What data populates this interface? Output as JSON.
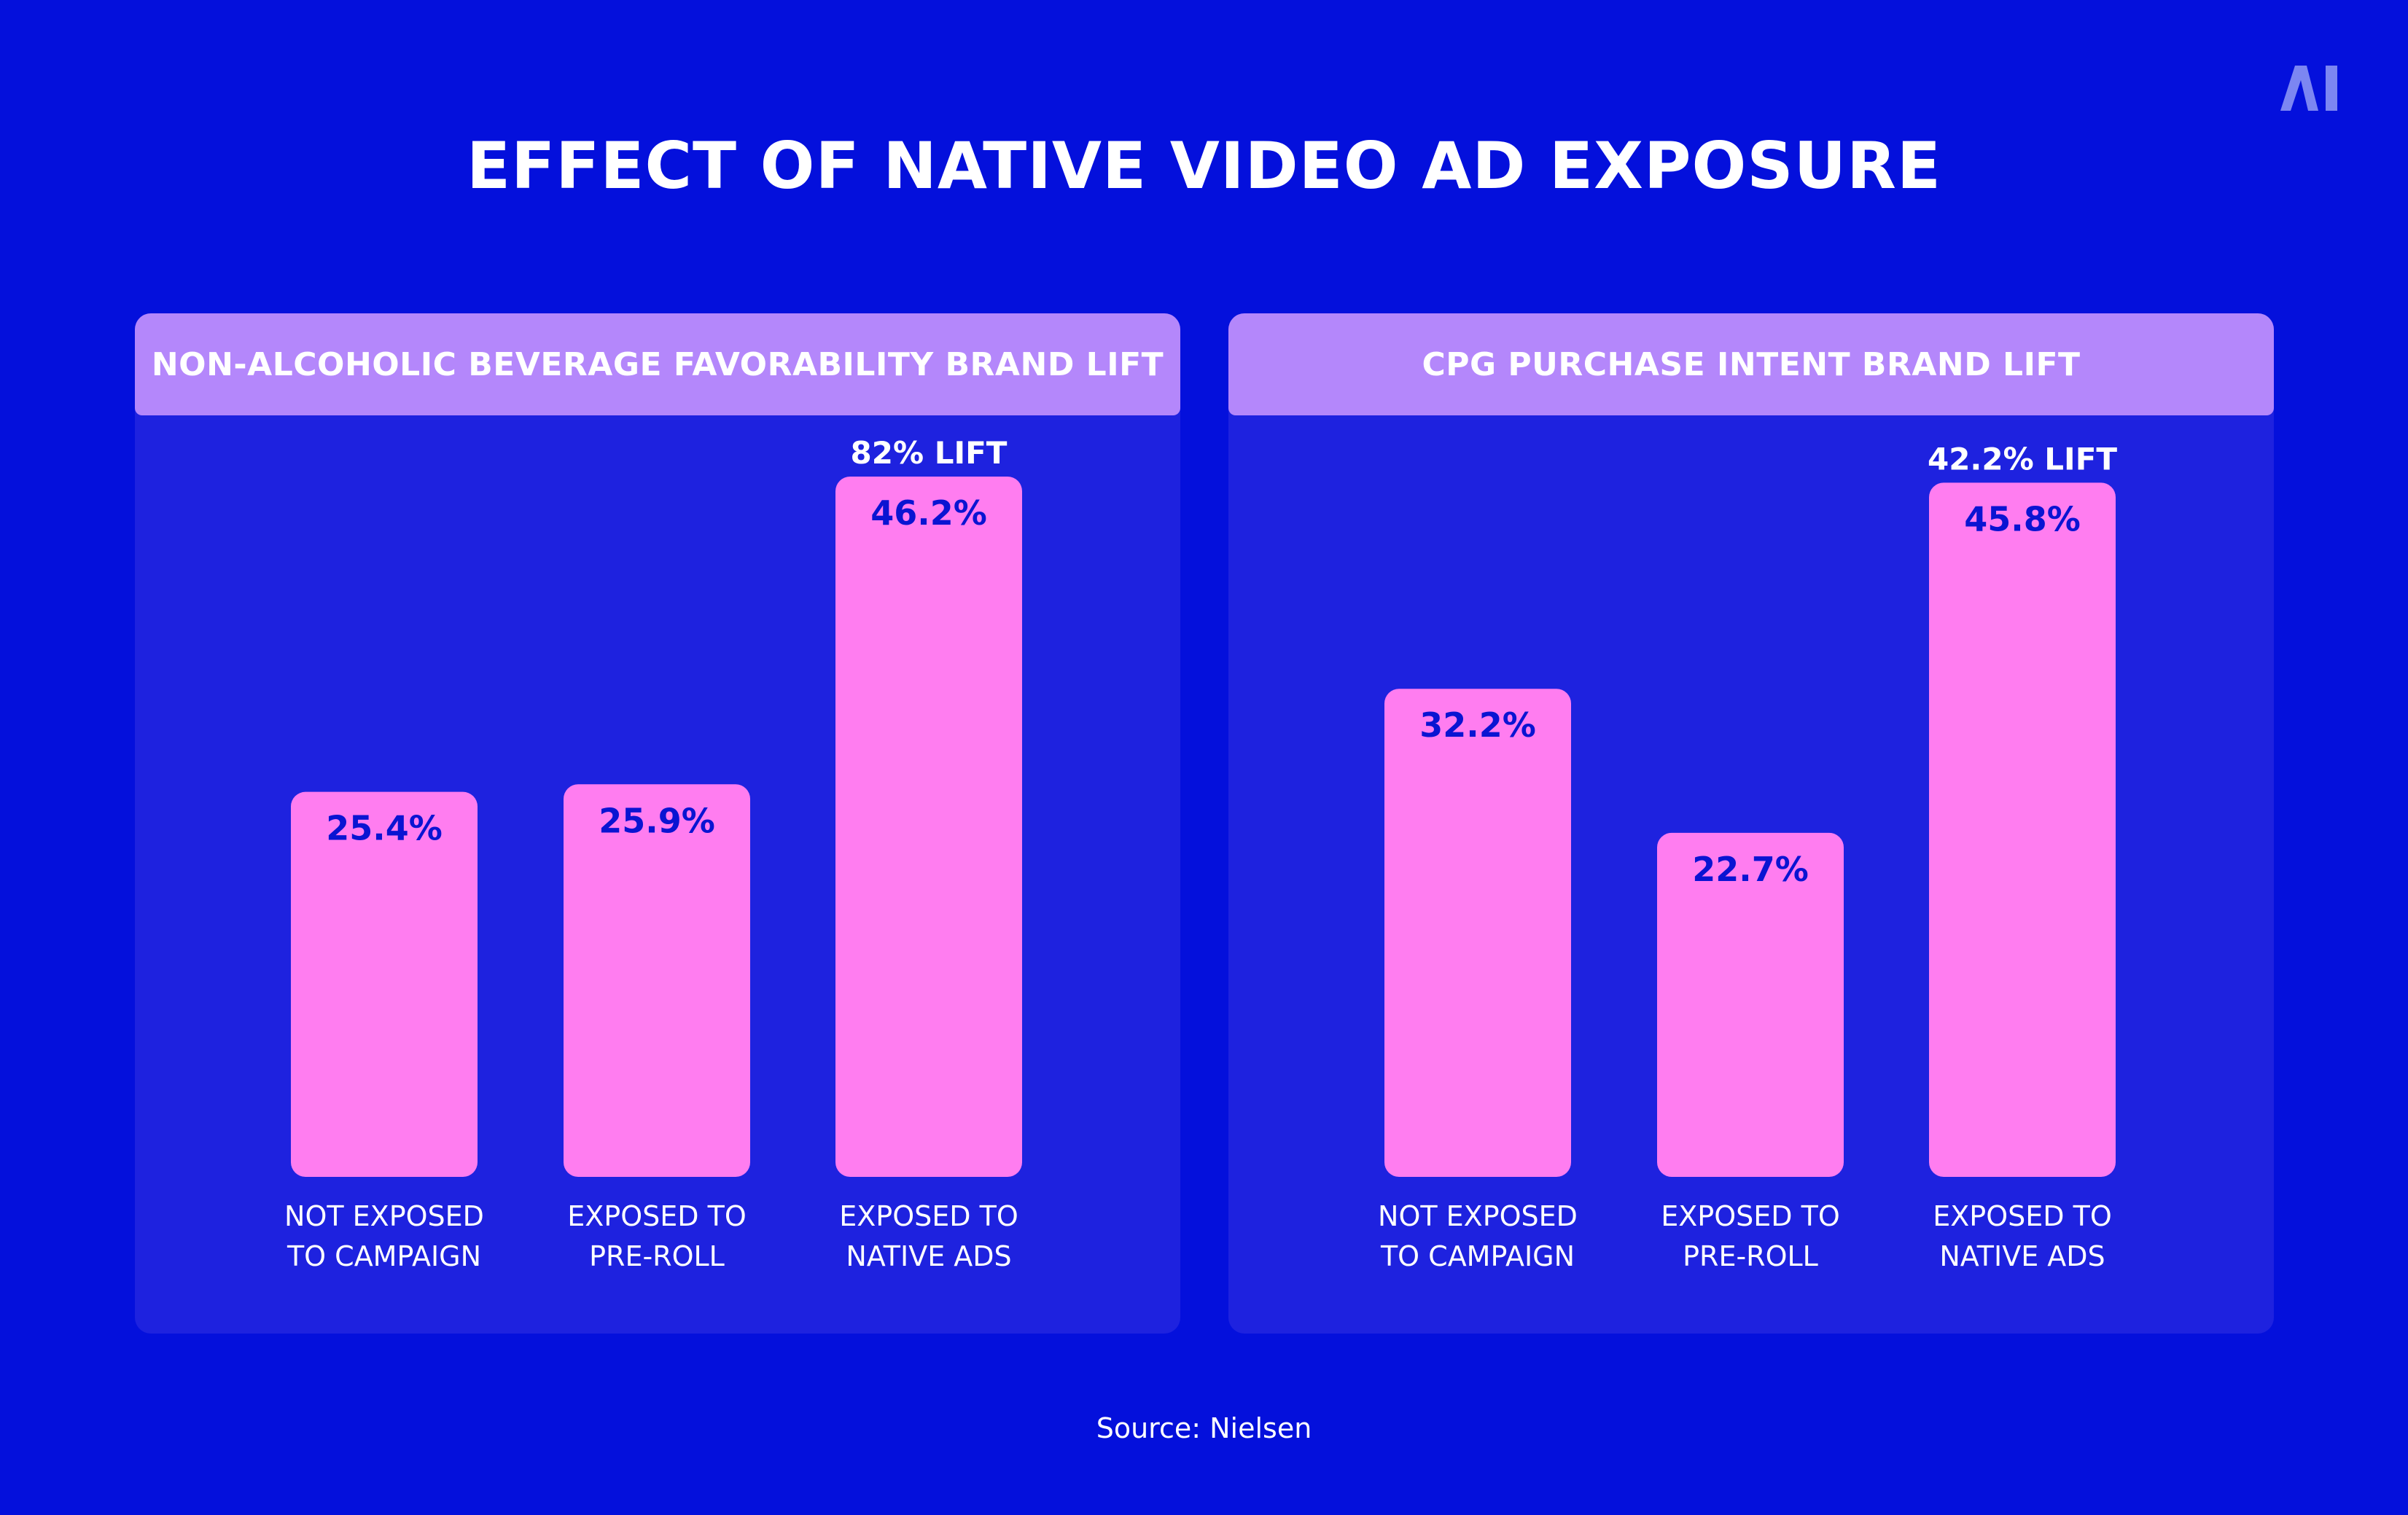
{
  "title": "EFFECT OF NATIVE VIDEO AD EXPOSURE",
  "logo_text": "AI",
  "source": "Source: Nielsen",
  "colors": {
    "background": "#0410DC",
    "panel": "#1E22DF",
    "panel_header": "#B487FB",
    "bar": "#FF7DF0",
    "bar_label": "#0A14D2",
    "text": "#FFFFFF"
  },
  "chart_data": [
    {
      "type": "bar",
      "title": "NON-ALCOHOLIC BEVERAGE FAVORABILITY BRAND LIFT",
      "categories": [
        [
          "NOT EXPOSED",
          "TO CAMPAIGN"
        ],
        [
          "EXPOSED TO",
          "PRE-ROLL"
        ],
        [
          "EXPOSED TO",
          "NATIVE ADS"
        ]
      ],
      "values": [
        25.4,
        25.9,
        46.2
      ],
      "value_labels": [
        "25.4%",
        "25.9%",
        "46.2%"
      ],
      "annotation": {
        "category_index": 2,
        "text": "82% LIFT"
      },
      "ylim": [
        0,
        50
      ],
      "grid": false
    },
    {
      "type": "bar",
      "title": "CPG PURCHASE INTENT BRAND LIFT",
      "categories": [
        [
          "NOT EXPOSED",
          "TO CAMPAIGN"
        ],
        [
          "EXPOSED TO",
          "PRE-ROLL"
        ],
        [
          "EXPOSED TO",
          "NATIVE ADS"
        ]
      ],
      "values": [
        32.2,
        22.7,
        45.8
      ],
      "value_labels": [
        "32.2%",
        "22.7%",
        "45.8%"
      ],
      "annotation": {
        "category_index": 2,
        "text": "42.2% LIFT"
      },
      "ylim": [
        0,
        50
      ],
      "grid": false
    }
  ]
}
